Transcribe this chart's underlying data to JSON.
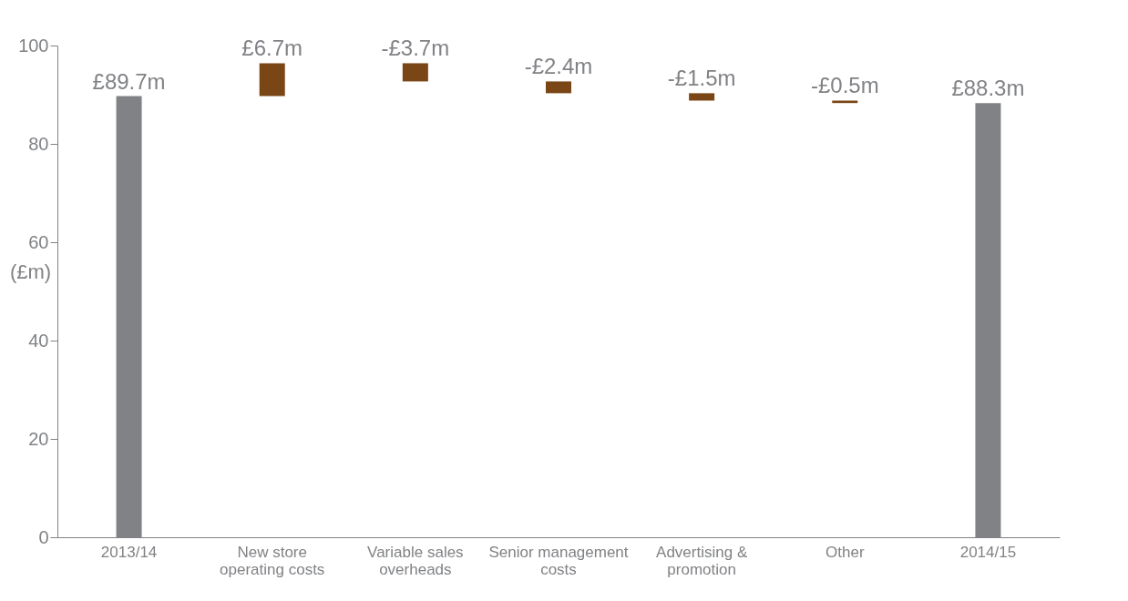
{
  "chart_data": {
    "type": "bar",
    "ylabel": "(£m)",
    "categories": [
      "2013/14",
      "New store operating costs",
      "Variable sales overheads",
      "Senior management costs",
      "Advertising & promotion",
      "Other",
      "2014/15"
    ],
    "values": [
      89.7,
      6.7,
      -3.7,
      -2.4,
      -1.5,
      -0.5,
      88.3
    ],
    "base": [
      0,
      89.7,
      96.4,
      92.7,
      90.3,
      88.8,
      0
    ],
    "colors": [
      "#808285",
      "#7a4616",
      "#7a4616",
      "#7a4616",
      "#7a4616",
      "#7a4616",
      "#808285"
    ],
    "value_labels": [
      "£89.7m",
      "£6.7m",
      "-£3.7m",
      "-£2.4m",
      "-£1.5m",
      "-£0.5m",
      "£88.3m"
    ],
    "ylim": [
      0,
      100
    ],
    "yticks": [
      0,
      20,
      40,
      60,
      80,
      100
    ],
    "grid": false
  }
}
